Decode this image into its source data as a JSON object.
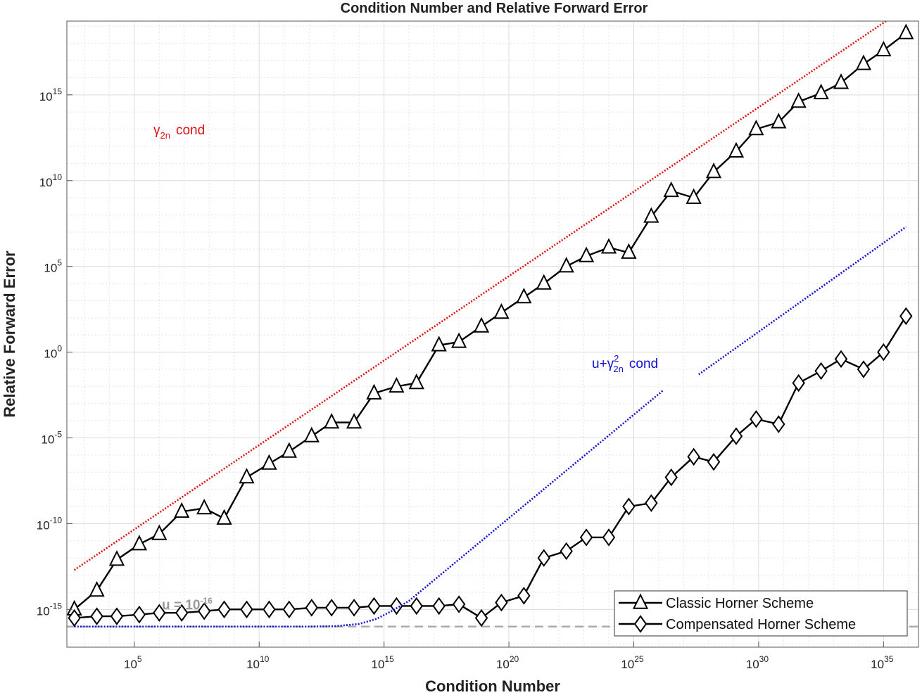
{
  "chart_data": {
    "type": "line",
    "title": "Condition Number and Relative Forward Error",
    "xlabel": "Condition Number",
    "ylabel": "Relative Forward Error",
    "xscale": "log",
    "yscale": "log",
    "xlim_log10": [
      2.3,
      36.4
    ],
    "ylim_log10": [
      -17.2,
      19.3
    ],
    "xticks": [
      {
        "base": "10",
        "exp": "5",
        "value": 5
      },
      {
        "base": "10",
        "exp": "10",
        "value": 10
      },
      {
        "base": "10",
        "exp": "15",
        "value": 15
      },
      {
        "base": "10",
        "exp": "20",
        "value": 20
      },
      {
        "base": "10",
        "exp": "25",
        "value": 25
      },
      {
        "base": "10",
        "exp": "30",
        "value": 30
      },
      {
        "base": "10",
        "exp": "35",
        "value": 35
      }
    ],
    "yticks": [
      {
        "base": "10",
        "exp": "15",
        "value": 15
      },
      {
        "base": "10",
        "exp": "10",
        "value": 10
      },
      {
        "base": "10",
        "exp": "5",
        "value": 5
      },
      {
        "base": "10",
        "exp": "0",
        "value": 0
      },
      {
        "base": "10",
        "exp": "-5",
        "value": -5
      },
      {
        "base": "10",
        "exp": "-10",
        "value": -10
      },
      {
        "base": "10",
        "exp": "-15",
        "value": -15
      }
    ],
    "grid": true,
    "minor_grid": true,
    "legend_position": "bottom-right",
    "series": [
      {
        "name": "Classic Horner Scheme",
        "marker": "triangle",
        "color": "#000000",
        "x_log10": [
          2.6,
          3.5,
          4.3,
          5.2,
          6.0,
          6.9,
          7.8,
          8.6,
          9.5,
          10.4,
          11.2,
          12.1,
          12.9,
          13.8,
          14.6,
          15.5,
          16.3,
          17.2,
          18.0,
          18.9,
          19.7,
          20.6,
          21.4,
          22.3,
          23.1,
          24.0,
          24.8,
          25.7,
          26.5,
          27.4,
          28.2,
          29.1,
          29.9,
          30.8,
          31.6,
          32.5,
          33.3,
          34.2,
          35.0,
          35.9
        ],
        "y_log10": [
          -15.0,
          -13.9,
          -12.1,
          -11.2,
          -10.6,
          -9.3,
          -9.1,
          -9.7,
          -7.3,
          -6.5,
          -5.8,
          -4.9,
          -4.1,
          -4.1,
          -2.4,
          -2.0,
          -1.8,
          0.4,
          0.6,
          1.5,
          2.3,
          3.2,
          4.0,
          5.0,
          5.6,
          6.1,
          5.8,
          7.9,
          9.4,
          9.0,
          10.5,
          11.7,
          13.0,
          13.4,
          14.6,
          15.1,
          15.7,
          16.8,
          17.6,
          18.6
        ]
      },
      {
        "name": "Compensated Horner Scheme",
        "marker": "diamond",
        "color": "#000000",
        "x_log10": [
          2.6,
          3.5,
          4.3,
          5.2,
          6.0,
          6.9,
          7.8,
          8.6,
          9.5,
          10.4,
          11.2,
          12.1,
          12.9,
          13.8,
          14.6,
          15.5,
          16.3,
          17.2,
          18.0,
          18.9,
          19.7,
          20.6,
          21.4,
          22.3,
          23.1,
          24.0,
          24.8,
          25.7,
          26.5,
          27.4,
          28.2,
          29.1,
          29.9,
          30.8,
          31.6,
          32.5,
          33.3,
          34.2,
          35.0,
          35.9
        ],
        "y_log10": [
          -15.5,
          -15.4,
          -15.4,
          -15.3,
          -15.2,
          -15.2,
          -15.1,
          -15.0,
          -15.0,
          -15.0,
          -15.0,
          -14.9,
          -14.9,
          -14.9,
          -14.8,
          -14.8,
          -14.8,
          -14.8,
          -14.7,
          -15.5,
          -14.6,
          -14.2,
          -12.0,
          -11.6,
          -10.8,
          -10.8,
          -9.0,
          -8.8,
          -7.3,
          -6.1,
          -6.4,
          -4.9,
          -3.9,
          -4.2,
          -1.8,
          -1.1,
          -0.4,
          -1.0,
          0.0,
          2.1
        ]
      },
      {
        "name": "γ2n cond",
        "style": "dotted",
        "color": "#e01010",
        "x_log10": [
          2.6,
          35.1
        ],
        "y_log10": [
          -12.7,
          19.3
        ]
      },
      {
        "name": "u+γ2n² cond",
        "style": "dotted",
        "color": "#1010d0",
        "x_log10": [
          2.6,
          12.0,
          13.0,
          14.0,
          14.7,
          15.3,
          16.0,
          26.2,
          27.6,
          35.9
        ],
        "y_log10": [
          -16.0,
          -16.0,
          -15.98,
          -15.85,
          -15.55,
          -15.1,
          -14.5,
          -2.2,
          -1.3,
          7.3
        ]
      }
    ],
    "annotations": [
      {
        "id": "gamma",
        "text_main": "γ",
        "text_sub": "2n",
        "text_rest": "cond",
        "color": "#e01010"
      },
      {
        "id": "u_gamma",
        "text_main": "u+γ",
        "text_sup": "2",
        "text_sub": "2n",
        "text_rest": "cond",
        "color": "#1010d0"
      },
      {
        "id": "unit_roundoff",
        "text_main": "u = 10",
        "text_sup": "-16",
        "color": "#999999",
        "y_log10": -16.0
      }
    ],
    "legend": [
      {
        "label": "Classic Horner Scheme",
        "marker": "triangle"
      },
      {
        "label": "Compensated Horner Scheme",
        "marker": "diamond"
      }
    ]
  }
}
